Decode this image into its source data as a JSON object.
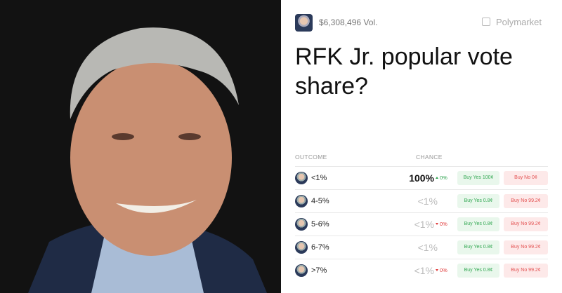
{
  "header": {
    "volume": "$6,308,496 Vol.",
    "brand": "Polymarket"
  },
  "title": "RFK Jr. popular vote share?",
  "table": {
    "columns": [
      "OUTCOME",
      "CHANCE"
    ],
    "rows": [
      {
        "outcome": "<1%",
        "chance": "100%",
        "chance_strong": true,
        "change": "0%",
        "change_direction": "up",
        "buy_yes": "Buy Yes 100¢",
        "buy_no": "Buy No 0¢"
      },
      {
        "outcome": "4-5%",
        "chance": "<1%",
        "chance_strong": false,
        "change": null,
        "change_direction": null,
        "buy_yes": "Buy Yes 0.8¢",
        "buy_no": "Buy No 99.2¢"
      },
      {
        "outcome": "5-6%",
        "chance": "<1%",
        "chance_strong": false,
        "change": "0%",
        "change_direction": "down",
        "buy_yes": "Buy Yes 0.8¢",
        "buy_no": "Buy No 99.2¢"
      },
      {
        "outcome": "6-7%",
        "chance": "<1%",
        "chance_strong": false,
        "change": null,
        "change_direction": null,
        "buy_yes": "Buy Yes 0.8¢",
        "buy_no": "Buy No 99.2¢"
      },
      {
        "outcome": ">7%",
        "chance": "<1%",
        "chance_strong": false,
        "change": "0%",
        "change_direction": "down",
        "buy_yes": "Buy Yes 0.8¢",
        "buy_no": "Buy No 99.2¢"
      }
    ]
  }
}
